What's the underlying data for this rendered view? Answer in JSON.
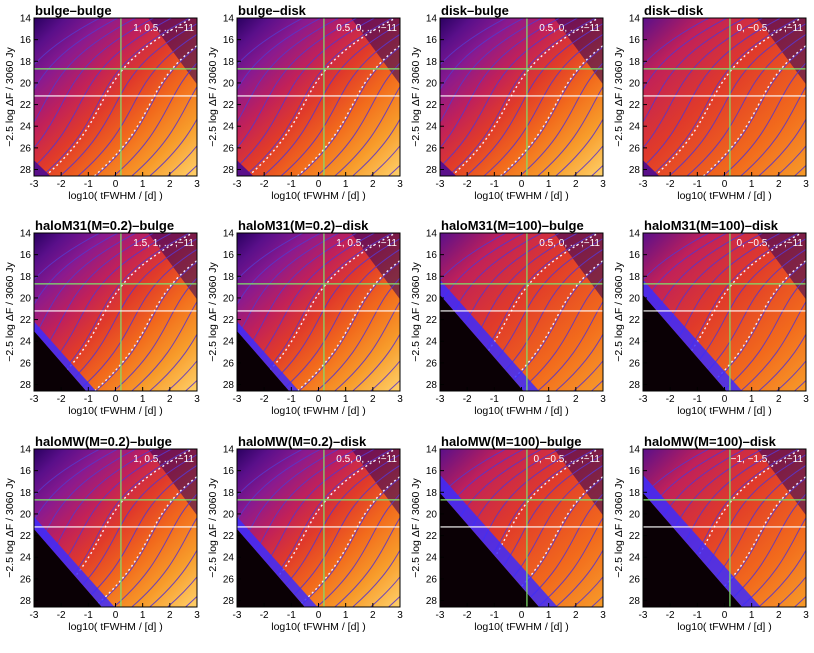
{
  "figure": {
    "background": "#ffffff",
    "line_colors": {
      "contour": "#5a36c8",
      "dotted": "#f4f0ff",
      "green": "#7fe36b",
      "white": "#ffffff"
    },
    "palette": [
      "#0a0005",
      "#2a0060",
      "#5a0f8a",
      "#8a1a8f",
      "#c0205a",
      "#e03a2a",
      "#f26a1c",
      "#f79b2a",
      "#ffd06a"
    ]
  },
  "chart_data": {
    "type": "heatmap",
    "xlabel": "log10( tFWHM / [d] )",
    "ylabel": "−2.5 log ΔF / 3060 Jy",
    "x_ticks": [
      "-3",
      "-2",
      "-1",
      "0",
      "1",
      "2",
      "3"
    ],
    "y_ticks": [
      "14",
      "16",
      "18",
      "20",
      "22",
      "24",
      "26",
      "28"
    ],
    "xlim": [
      -3,
      3
    ],
    "ylim": [
      14,
      28.6
    ],
    "reference_lines": {
      "green_vertical_x": 0.2,
      "green_horizontal_y": 18.7,
      "white_horizontal_y": 21.2
    },
    "panels": [
      {
        "title": "bulge–bulge",
        "levels": "1, 0.5, ... ,−11",
        "variant": "bulge"
      },
      {
        "title": "bulge–disk",
        "levels": "0.5, 0, ... ,−11",
        "variant": "bulge"
      },
      {
        "title": "disk–bulge",
        "levels": "0.5, 0, ... ,−11",
        "variant": "bulge"
      },
      {
        "title": "disk–disk",
        "levels": "0, −0.5, ... ,−11",
        "variant": "disk"
      },
      {
        "title": "haloM31(M=0.2)–bulge",
        "levels": "1.5, 1, ... ,−11",
        "variant": "haloS"
      },
      {
        "title": "haloM31(M=0.2)–disk",
        "levels": "1, 0.5, ... ,−11",
        "variant": "haloS"
      },
      {
        "title": "haloM31(M=100)–bulge",
        "levels": "0.5, 0, ... ,−11",
        "variant": "haloL"
      },
      {
        "title": "haloM31(M=100)–disk",
        "levels": "0, −0.5, ... ,−11",
        "variant": "haloL"
      },
      {
        "title": "haloMW(M=0.2)–bulge",
        "levels": "1, 0.5, ... ,−11",
        "variant": "mwS"
      },
      {
        "title": "haloMW(M=0.2)–disk",
        "levels": "0.5, 0, ... ,−11",
        "variant": "mwS"
      },
      {
        "title": "haloMW(M=100)–bulge",
        "levels": "0, −0.5, ... ,−11",
        "variant": "mwL"
      },
      {
        "title": "haloMW(M=100)–disk",
        "levels": "−1, −1.5, ... ,−11",
        "variant": "mwL"
      }
    ]
  }
}
